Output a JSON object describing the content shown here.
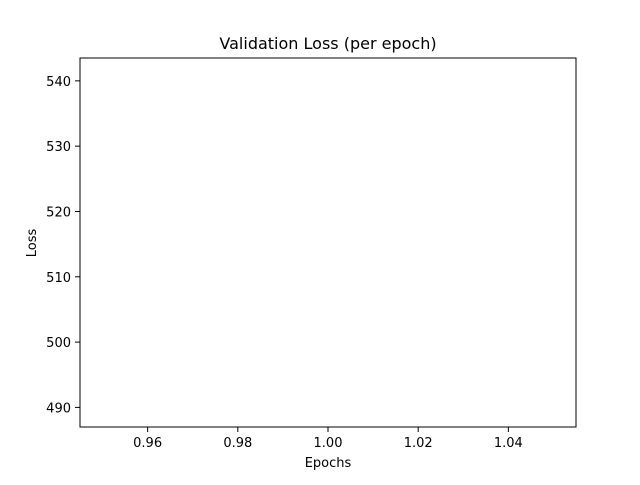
{
  "chart_data": {
    "type": "line",
    "title": "Validation Loss (per epoch)",
    "xlabel": "Epochs",
    "ylabel": "Loss",
    "xlim": [
      0.945,
      1.055
    ],
    "ylim": [
      487.0,
      543.5
    ],
    "x_ticks": [
      0.96,
      0.98,
      1.0,
      1.02,
      1.04
    ],
    "x_tick_labels": [
      "0.96",
      "0.98",
      "1.00",
      "1.02",
      "1.04"
    ],
    "y_ticks": [
      490,
      500,
      510,
      520,
      530,
      540
    ],
    "y_tick_labels": [
      "490",
      "500",
      "510",
      "520",
      "530",
      "540"
    ],
    "grid": false,
    "series": []
  }
}
